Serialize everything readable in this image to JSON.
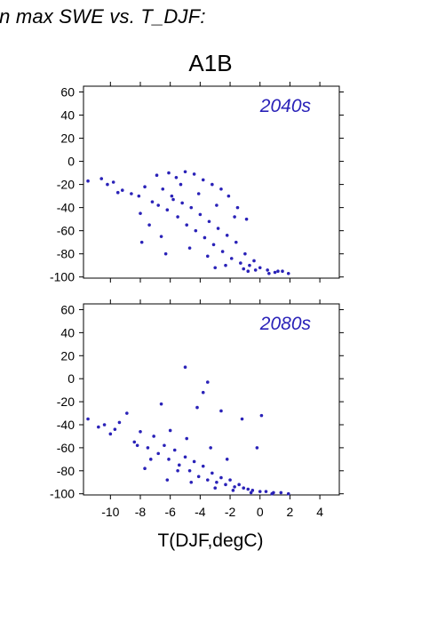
{
  "page": {
    "title": "in max SWE vs. T_DJF:",
    "scenario": "A1B"
  },
  "colors": {
    "points": "#2a22b8",
    "frame": "#000000",
    "period_label": "#2a22b8"
  },
  "chart_data": [
    {
      "type": "scatter",
      "title": "2040s",
      "xlabel": "T(DJF,degC)",
      "ylabel": "",
      "xlim": [
        -11.8,
        5.3
      ],
      "ylim": [
        -101,
        65
      ],
      "xticks": [
        -10,
        -8,
        -6,
        -4,
        -2,
        0,
        2,
        4
      ],
      "yticks": [
        -100,
        -80,
        -60,
        -40,
        -20,
        0,
        20,
        40,
        60
      ],
      "grid": false,
      "series": [
        {
          "x": [
            -11.5,
            -10.6,
            -10.2,
            -9.8,
            -9.2,
            -8.6,
            -8.1,
            -7.7,
            -7.2,
            -6.8,
            -6.5,
            -6.2,
            -5.9,
            -5.5,
            -5.2,
            -4.9,
            -4.6,
            -4.3,
            -4.0,
            -3.7,
            -3.4,
            -3.1,
            -2.8,
            -2.5,
            -2.2,
            -1.9,
            -1.6,
            -1.3,
            -1.0,
            -0.7,
            -0.4,
            0.0,
            0.5,
            1.0,
            1.5,
            1.9,
            -6.9,
            -6.1,
            -5.6,
            -5.0,
            -4.4,
            -3.8,
            -3.2,
            -2.6,
            -2.1,
            -1.5,
            -0.9,
            -8.0,
            -7.4,
            -9.5,
            -6.6,
            -4.7,
            -3.5,
            -2.3,
            -1.1,
            -0.3,
            1.2,
            -5.8,
            -5.3,
            -4.1,
            -2.9,
            -1.7,
            -7.9,
            -6.3,
            -3.0,
            -0.8,
            0.6
          ],
          "y": [
            -17,
            -15,
            -20,
            -18,
            -25,
            -28,
            -30,
            -22,
            -35,
            -38,
            -24,
            -42,
            -30,
            -48,
            -36,
            -55,
            -40,
            -60,
            -46,
            -66,
            -52,
            -72,
            -58,
            -78,
            -64,
            -84,
            -70,
            -88,
            -80,
            -90,
            -86,
            -92,
            -94,
            -96,
            -95,
            -97,
            -12,
            -10,
            -14,
            -9,
            -11,
            -16,
            -20,
            -24,
            -30,
            -40,
            -50,
            -45,
            -55,
            -27,
            -65,
            -75,
            -82,
            -90,
            -93,
            -94,
            -95,
            -33,
            -20,
            -28,
            -38,
            -48,
            -70,
            -80,
            -92,
            -95,
            -97
          ]
        }
      ]
    },
    {
      "type": "scatter",
      "title": "2080s",
      "xlabel": "T(DJF,degC)",
      "ylabel": "",
      "xlim": [
        -11.8,
        5.3
      ],
      "ylim": [
        -101,
        65
      ],
      "xticks": [
        -10,
        -8,
        -6,
        -4,
        -2,
        0,
        2,
        4
      ],
      "yticks": [
        -100,
        -80,
        -60,
        -40,
        -20,
        0,
        20,
        40,
        60
      ],
      "grid": false,
      "series": [
        {
          "x": [
            -11.5,
            -10.8,
            -10.4,
            -10.0,
            -9.4,
            -8.9,
            -8.4,
            -8.0,
            -7.5,
            -7.1,
            -6.8,
            -6.4,
            -6.1,
            -5.7,
            -5.4,
            -5.0,
            -4.7,
            -4.4,
            -4.1,
            -3.8,
            -3.5,
            -3.2,
            -2.9,
            -2.6,
            -2.3,
            -2.0,
            -1.7,
            -1.4,
            -1.1,
            -0.8,
            -0.5,
            0.0,
            0.4,
            0.9,
            1.4,
            1.9,
            -5.0,
            -3.5,
            -3.8,
            -6.6,
            -4.2,
            -2.6,
            -1.2,
            0.1,
            -8.2,
            -7.3,
            -5.5,
            -4.6,
            -3.0,
            -1.8,
            -0.6,
            0.8,
            -6.0,
            -4.9,
            -3.3,
            -2.2,
            -9.7,
            -7.7,
            -6.2,
            -0.2
          ],
          "y": [
            -35,
            -42,
            -40,
            -48,
            -38,
            -30,
            -55,
            -46,
            -60,
            -50,
            -65,
            -58,
            -70,
            -62,
            -75,
            -68,
            -80,
            -72,
            -85,
            -76,
            -88,
            -82,
            -90,
            -86,
            -92,
            -88,
            -94,
            -92,
            -95,
            -96,
            -97,
            -98,
            -98,
            -99,
            -99,
            -100,
            10,
            -3,
            -12,
            -22,
            -25,
            -28,
            -35,
            -32,
            -58,
            -70,
            -80,
            -90,
            -95,
            -97,
            -99,
            -100,
            -45,
            -52,
            -60,
            -70,
            -44,
            -78,
            -88,
            -60
          ]
        }
      ]
    }
  ]
}
